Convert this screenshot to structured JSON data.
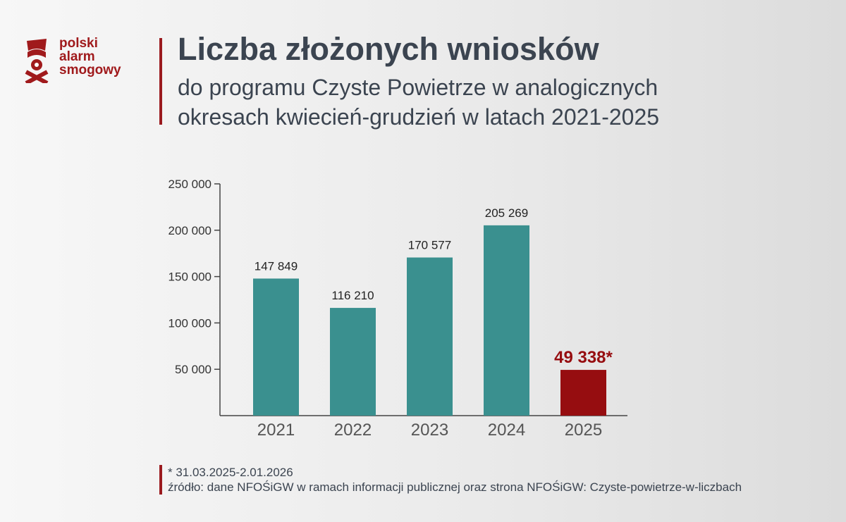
{
  "logo": {
    "lines": [
      "polski",
      "alarm",
      "smogowy"
    ]
  },
  "header": {
    "title": "Liczba złożonych wniosków",
    "subtitle_1": "do programu Czyste Powietrze w analogicznych",
    "subtitle_2": "okresach kwiecień-grudzień w latach 2021-2025"
  },
  "chart_data": {
    "type": "bar",
    "categories": [
      "2021",
      "2022",
      "2023",
      "2024",
      "2025"
    ],
    "values": [
      147849,
      116210,
      170577,
      205269,
      49338
    ],
    "data_labels": [
      "147 849",
      "116 210",
      "170 577",
      "205 269",
      "49 338*"
    ],
    "ylim": [
      0,
      250000
    ],
    "yticks": [
      50000,
      100000,
      150000,
      200000,
      250000
    ],
    "ytick_labels": [
      "50 000",
      "100 000",
      "150 000",
      "200 000",
      "250 000"
    ],
    "colors": [
      "#3a908f",
      "#3a908f",
      "#3a908f",
      "#3a908f",
      "#960d10"
    ],
    "grid": false
  },
  "footer": {
    "note": "* 31.03.2025-2.01.2026",
    "source": "źródło: dane NFOŚiGW w ramach informacji publicznej oraz strona NFOŚiGW: Czyste-powietrze-w-liczbach"
  }
}
